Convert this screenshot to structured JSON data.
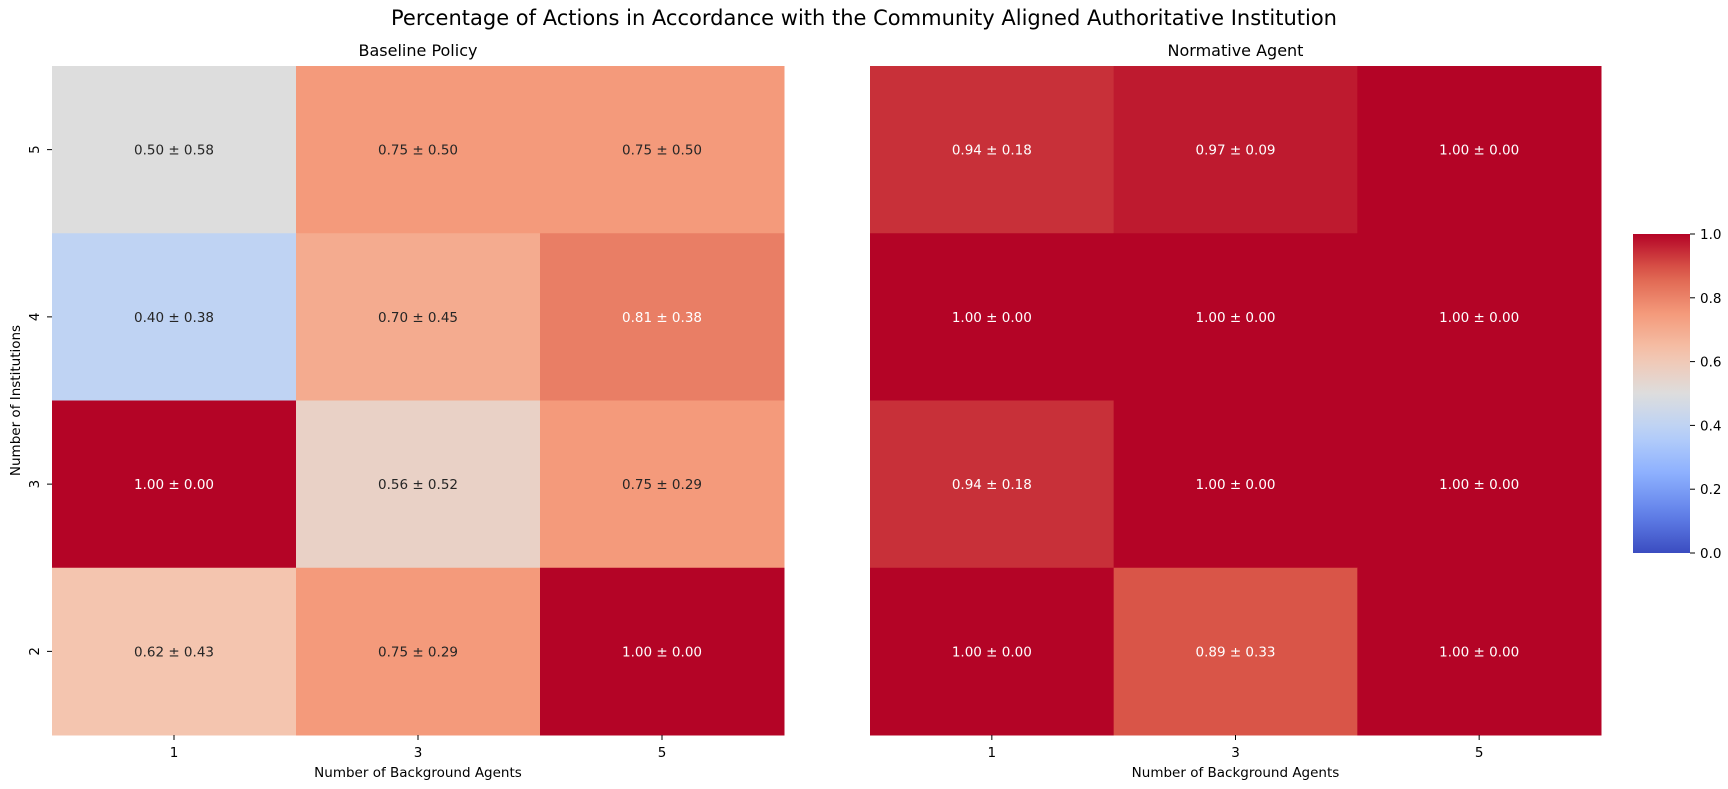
{
  "figure": {
    "title": "Percentage of Actions in Accordance with the Community Aligned Authoritative Institution"
  },
  "chart_data": [
    {
      "type": "heatmap",
      "title": "Baseline Policy",
      "xlabel": "Number of Background Agents",
      "ylabel": "Number of Institutions",
      "x_categories": [
        "1",
        "3",
        "5"
      ],
      "y_categories": [
        "5",
        "4",
        "3",
        "2"
      ],
      "values": [
        [
          0.5,
          0.75,
          0.75
        ],
        [
          0.4,
          0.7,
          0.81
        ],
        [
          1.0,
          0.56,
          0.75
        ],
        [
          0.62,
          0.75,
          1.0
        ]
      ],
      "std": [
        [
          0.58,
          0.5,
          0.5
        ],
        [
          0.38,
          0.45,
          0.38
        ],
        [
          0.0,
          0.52,
          0.29
        ],
        [
          0.43,
          0.29,
          0.0
        ]
      ],
      "annotations": [
        [
          "0.50 ± 0.58",
          "0.75 ± 0.50",
          "0.75 ± 0.50"
        ],
        [
          "0.40 ± 0.38",
          "0.70 ± 0.45",
          "0.81 ± 0.38"
        ],
        [
          "1.00 ± 0.00",
          "0.56 ± 0.52",
          "0.75 ± 0.29"
        ],
        [
          "0.62 ± 0.43",
          "0.75 ± 0.29",
          "1.00 ± 0.00"
        ]
      ],
      "vmin": 0,
      "vmax": 1,
      "colormap": "coolwarm"
    },
    {
      "type": "heatmap",
      "title": "Normative Agent",
      "xlabel": "Number of Background Agents",
      "ylabel": "",
      "x_categories": [
        "1",
        "3",
        "5"
      ],
      "y_categories": [
        "5",
        "4",
        "3",
        "2"
      ],
      "values": [
        [
          0.94,
          0.97,
          1.0
        ],
        [
          1.0,
          1.0,
          1.0
        ],
        [
          0.94,
          1.0,
          1.0
        ],
        [
          1.0,
          0.89,
          1.0
        ]
      ],
      "std": [
        [
          0.18,
          0.09,
          0.0
        ],
        [
          0.0,
          0.0,
          0.0
        ],
        [
          0.18,
          0.0,
          0.0
        ],
        [
          0.0,
          0.33,
          0.0
        ]
      ],
      "annotations": [
        [
          "0.94 ± 0.18",
          "0.97 ± 0.09",
          "1.00 ± 0.00"
        ],
        [
          "1.00 ± 0.00",
          "1.00 ± 0.00",
          "1.00 ± 0.00"
        ],
        [
          "0.94 ± 0.18",
          "1.00 ± 0.00",
          "1.00 ± 0.00"
        ],
        [
          "1.00 ± 0.00",
          "0.89 ± 0.33",
          "1.00 ± 0.00"
        ]
      ],
      "vmin": 0,
      "vmax": 1,
      "colormap": "coolwarm"
    }
  ],
  "colorbar": {
    "ticks": [
      "0.0",
      "0.2",
      "0.4",
      "0.6",
      "0.8",
      "1.0"
    ],
    "tick_values": [
      0,
      0.2,
      0.4,
      0.6,
      0.8,
      1.0
    ]
  }
}
